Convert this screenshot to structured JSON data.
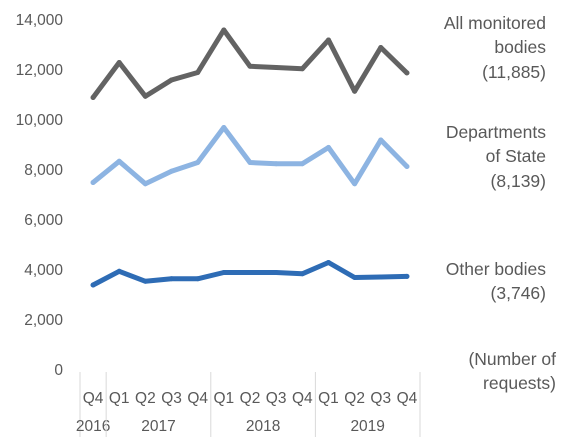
{
  "chart_data": {
    "type": "line",
    "categories": [
      "Q4",
      "Q1",
      "Q2",
      "Q3",
      "Q4",
      "Q1",
      "Q2",
      "Q3",
      "Q4",
      "Q1",
      "Q2",
      "Q3",
      "Q4"
    ],
    "year_groups": [
      {
        "label": "2016",
        "span": 1
      },
      {
        "label": "2017",
        "span": 4
      },
      {
        "label": "2018",
        "span": 4
      },
      {
        "label": "2019",
        "span": 4
      }
    ],
    "ylim": [
      0,
      14000
    ],
    "yticks": [
      "0",
      "2,000",
      "4,000",
      "6,000",
      "8,000",
      "10,000",
      "12,000",
      "14,000"
    ],
    "ytick_values": [
      0,
      2000,
      4000,
      6000,
      8000,
      10000,
      12000,
      14000
    ],
    "unit_label": [
      "(Number of",
      "requests)"
    ],
    "grid": false,
    "series": [
      {
        "name": "All monitored bodies",
        "label_lines": [
          "All monitored",
          "bodies",
          "(11,885)"
        ],
        "color": "#636363",
        "values": [
          10900,
          12300,
          10950,
          11600,
          11900,
          13600,
          12150,
          12100,
          12050,
          13200,
          11150,
          12900,
          11885
        ]
      },
      {
        "name": "Departments of State",
        "label_lines": [
          "Departments",
          "of State",
          "(8,139)"
        ],
        "color": "#8db4e2",
        "values": [
          7500,
          8350,
          7450,
          7950,
          8300,
          9700,
          8300,
          8250,
          8250,
          8900,
          7450,
          9200,
          8139
        ]
      },
      {
        "name": "Other bodies",
        "label_lines": [
          "Other bodies",
          "(3,746)"
        ],
        "color": "#2e6cb5",
        "values": [
          3400,
          3950,
          3550,
          3650,
          3650,
          3900,
          3900,
          3900,
          3850,
          4300,
          3700,
          3720,
          3746
        ]
      }
    ]
  }
}
